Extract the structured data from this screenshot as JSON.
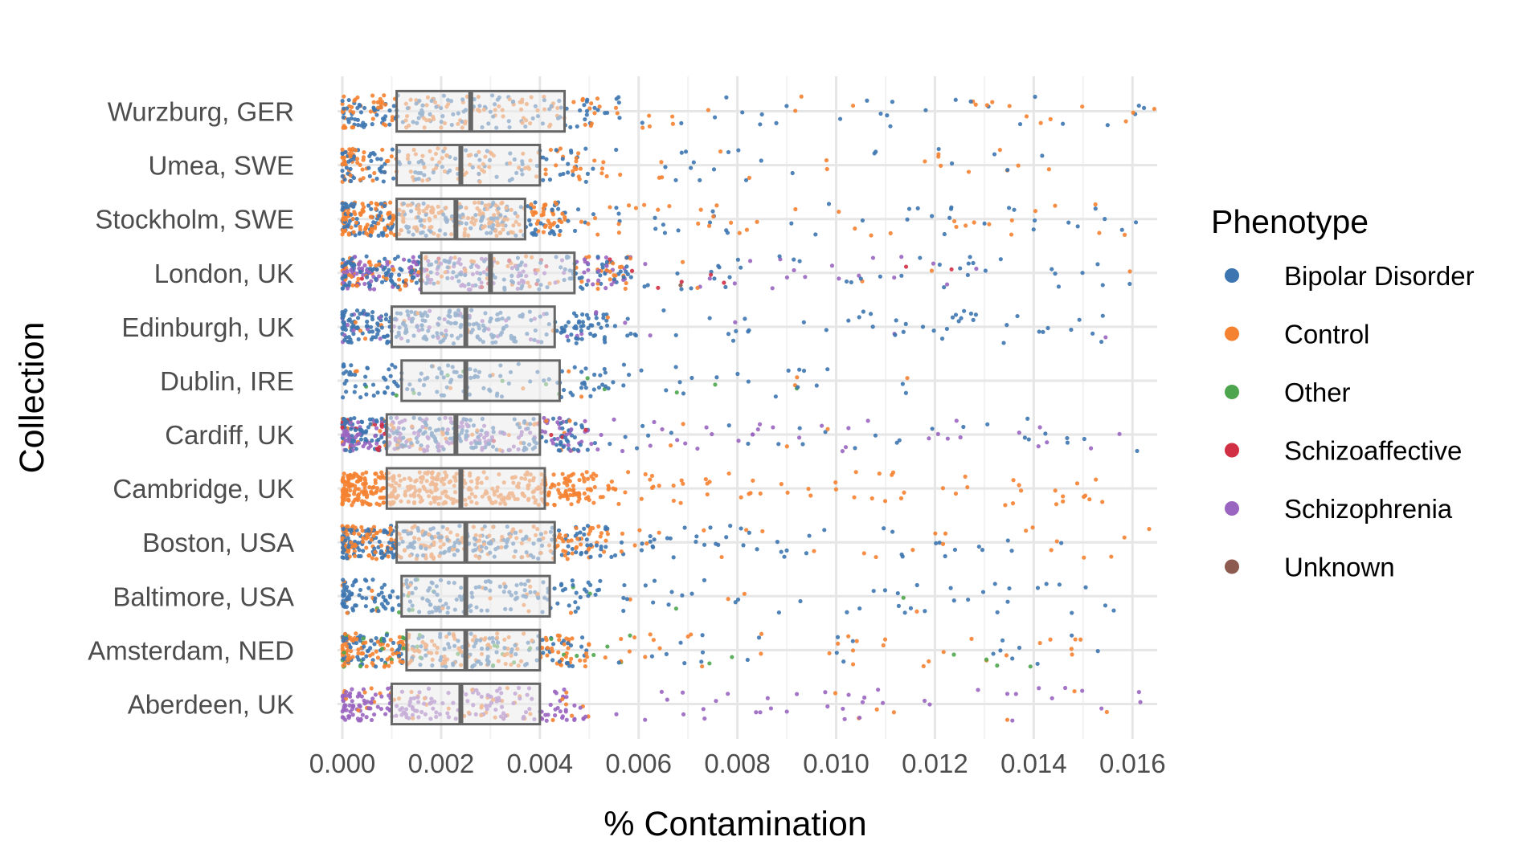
{
  "chart_data": {
    "type": "scatter",
    "subtype": "jittered strip plot with boxplot overlay",
    "title": "",
    "xlabel": "% Contamination",
    "ylabel": "Collection",
    "xlim": [
      0,
      0.0165
    ],
    "x_ticks": [
      "0.000",
      "0.002",
      "0.004",
      "0.006",
      "0.008",
      "0.010",
      "0.012",
      "0.014",
      "0.016"
    ],
    "grid": true,
    "legend": {
      "title": "Phenotype",
      "position": "right",
      "entries": [
        {
          "name": "Bipolar Disorder",
          "color": "#3d75b0"
        },
        {
          "name": "Control",
          "color": "#f58231"
        },
        {
          "name": "Other",
          "color": "#4da64d"
        },
        {
          "name": "Schizoaffective",
          "color": "#d12f44"
        },
        {
          "name": "Schizophrenia",
          "color": "#9a65c0"
        },
        {
          "name": "Unknown",
          "color": "#8c5a4f"
        }
      ]
    },
    "categories": [
      "Wurzburg, GER",
      "Umea, SWE",
      "Stockholm, SWE",
      "London, UK",
      "Edinburgh, UK",
      "Dublin, IRE",
      "Cardiff, UK",
      "Cambridge, UK",
      "Boston, USA",
      "Baltimore, USA",
      "Amsterdam, NED",
      "Aberdeen, UK"
    ],
    "boxplots": [
      {
        "category": "Wurzburg, GER",
        "q1": 0.0011,
        "median": 0.0026,
        "q3": 0.0045
      },
      {
        "category": "Umea, SWE",
        "q1": 0.0011,
        "median": 0.0024,
        "q3": 0.004
      },
      {
        "category": "Stockholm, SWE",
        "q1": 0.0011,
        "median": 0.0023,
        "q3": 0.0037
      },
      {
        "category": "London, UK",
        "q1": 0.0016,
        "median": 0.003,
        "q3": 0.0047
      },
      {
        "category": "Edinburgh, UK",
        "q1": 0.001,
        "median": 0.0025,
        "q3": 0.0043
      },
      {
        "category": "Dublin, IRE",
        "q1": 0.0012,
        "median": 0.0025,
        "q3": 0.0044
      },
      {
        "category": "Cardiff, UK",
        "q1": 0.0009,
        "median": 0.0023,
        "q3": 0.004
      },
      {
        "category": "Cambridge, UK",
        "q1": 0.0009,
        "median": 0.0024,
        "q3": 0.0041
      },
      {
        "category": "Boston, USA",
        "q1": 0.0011,
        "median": 0.0025,
        "q3": 0.0043
      },
      {
        "category": "Baltimore, USA",
        "q1": 0.0012,
        "median": 0.0025,
        "q3": 0.0042
      },
      {
        "category": "Amsterdam, NED",
        "q1": 0.0013,
        "median": 0.0025,
        "q3": 0.004
      },
      {
        "category": "Aberdeen, UK",
        "q1": 0.001,
        "median": 0.0024,
        "q3": 0.004
      }
    ],
    "point_groups": [
      {
        "category": "Wurzburg, GER",
        "density": 0.55,
        "max": 0.0165,
        "mix": {
          "Bipolar Disorder": 0.5,
          "Control": 0.5
        }
      },
      {
        "category": "Umea, SWE",
        "density": 0.5,
        "max": 0.0148,
        "mix": {
          "Bipolar Disorder": 0.45,
          "Control": 0.55
        }
      },
      {
        "category": "Stockholm, SWE",
        "density": 1.0,
        "max": 0.0162,
        "mix": {
          "Bipolar Disorder": 0.45,
          "Control": 0.55
        }
      },
      {
        "category": "London, UK",
        "density": 1.0,
        "max": 0.0165,
        "mix": {
          "Bipolar Disorder": 0.45,
          "Control": 0.2,
          "Schizophrenia": 0.3,
          "Schizoaffective": 0.04,
          "Unknown": 0.01
        }
      },
      {
        "category": "Edinburgh, UK",
        "density": 0.7,
        "max": 0.0162,
        "mix": {
          "Bipolar Disorder": 0.85,
          "Schizophrenia": 0.1,
          "Control": 0.05
        }
      },
      {
        "category": "Dublin, IRE",
        "density": 0.3,
        "max": 0.0115,
        "mix": {
          "Bipolar Disorder": 0.9,
          "Control": 0.05,
          "Other": 0.05
        }
      },
      {
        "category": "Cardiff, UK",
        "density": 1.0,
        "max": 0.0163,
        "mix": {
          "Bipolar Disorder": 0.45,
          "Schizophrenia": 0.4,
          "Control": 0.1,
          "Schizoaffective": 0.05
        }
      },
      {
        "category": "Cambridge, UK",
        "density": 1.0,
        "max": 0.0158,
        "mix": {
          "Control": 1.0
        }
      },
      {
        "category": "Boston, USA",
        "density": 1.0,
        "max": 0.0165,
        "mix": {
          "Bipolar Disorder": 0.55,
          "Control": 0.45
        }
      },
      {
        "category": "Baltimore, USA",
        "density": 0.5,
        "max": 0.0159,
        "mix": {
          "Bipolar Disorder": 0.85,
          "Control": 0.1,
          "Other": 0.05
        }
      },
      {
        "category": "Amsterdam, NED",
        "density": 0.85,
        "max": 0.0155,
        "mix": {
          "Bipolar Disorder": 0.4,
          "Control": 0.5,
          "Other": 0.1
        }
      },
      {
        "category": "Aberdeen, UK",
        "density": 0.55,
        "max": 0.0164,
        "mix": {
          "Schizophrenia": 0.8,
          "Control": 0.2
        }
      }
    ]
  }
}
